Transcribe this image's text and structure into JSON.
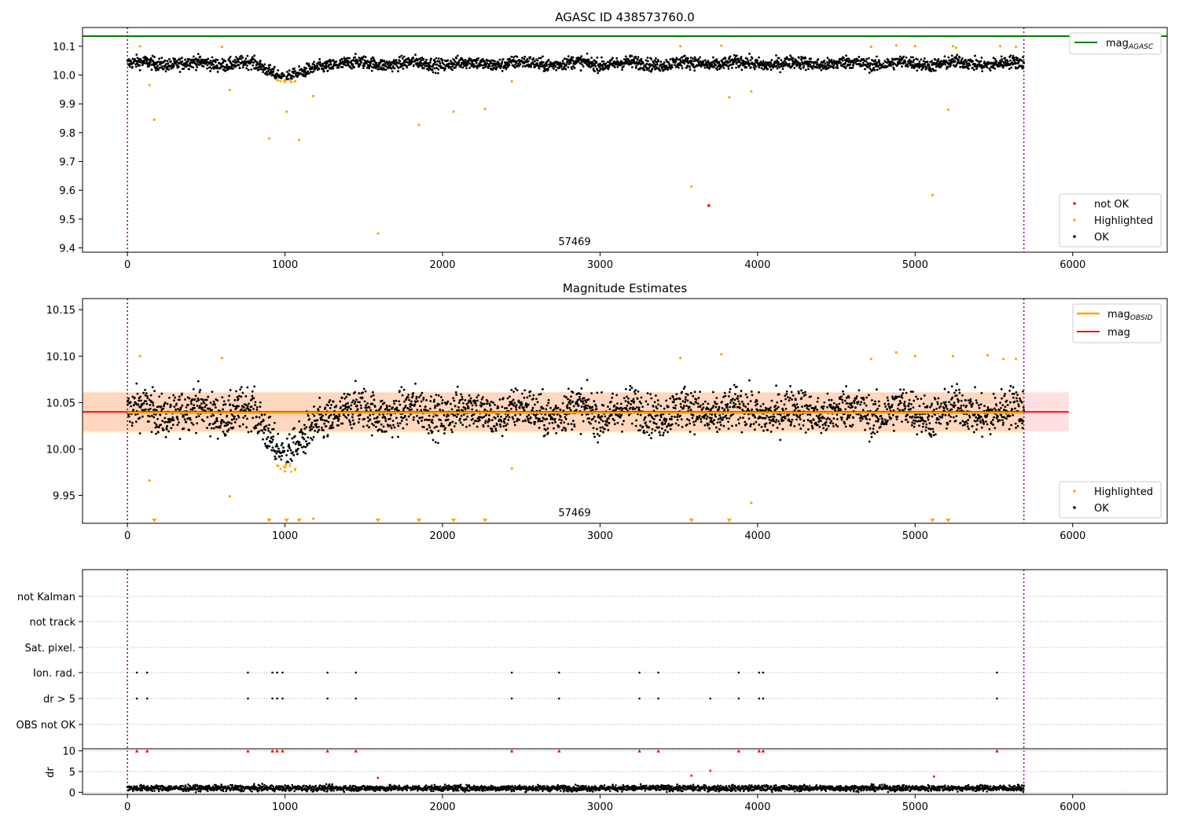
{
  "chart_data": [
    {
      "type": "scatter",
      "title": "AGASC ID 438573760.0",
      "xlim": [
        -285,
        6600
      ],
      "ylim": [
        9.385,
        10.165
      ],
      "x_ticks": [
        "0",
        "1000",
        "2000",
        "3000",
        "4000",
        "5000",
        "6000"
      ],
      "y_ticks": [
        "9.4",
        "9.5",
        "9.6",
        "9.7",
        "9.8",
        "9.9",
        "10.0",
        "10.1"
      ],
      "obsid_label": "57469",
      "obsid_boundaries": [
        0,
        5690
      ],
      "mag_agasc": 10.135,
      "ok_series": {
        "name": "OK",
        "color": "#000000",
        "x_range": [
          0,
          5690
        ],
        "baseline": 10.04,
        "noise": 0.022
      },
      "highlighted_points": [
        [
          80,
          10.1
        ],
        [
          140,
          9.965
        ],
        [
          170,
          9.845
        ],
        [
          600,
          10.098
        ],
        [
          650,
          9.948
        ],
        [
          900,
          9.78
        ],
        [
          1010,
          9.873
        ],
        [
          1090,
          9.775
        ],
        [
          1180,
          9.927
        ],
        [
          1590,
          9.45
        ],
        [
          1850,
          9.827
        ],
        [
          2070,
          9.873
        ],
        [
          2270,
          9.882
        ],
        [
          2440,
          9.978
        ],
        [
          3510,
          10.1
        ],
        [
          3580,
          9.613
        ],
        [
          3770,
          10.102
        ],
        [
          3820,
          9.923
        ],
        [
          3960,
          9.943
        ],
        [
          4720,
          10.098
        ],
        [
          4880,
          10.103
        ],
        [
          5000,
          10.1
        ],
        [
          5110,
          9.583
        ],
        [
          5210,
          9.88
        ],
        [
          5240,
          10.1
        ],
        [
          5260,
          10.095
        ],
        [
          5540,
          10.1
        ],
        [
          5640,
          10.098
        ]
      ],
      "not_ok_points": [
        [
          3690,
          9.547
        ]
      ],
      "legend_top": [
        {
          "label": "mag",
          "sub": "AGASC",
          "color": "#008000"
        }
      ],
      "legend_bottom": [
        {
          "label": "not OK",
          "color": "#ff0000"
        },
        {
          "label": "Highlighted",
          "color": "#ffa500"
        },
        {
          "label": "OK",
          "color": "#000000"
        }
      ]
    },
    {
      "type": "scatter",
      "title": "Magnitude Estimates",
      "xlim": [
        -285,
        6600
      ],
      "ylim": [
        9.92,
        10.162
      ],
      "x_ticks": [
        "0",
        "1000",
        "2000",
        "3000",
        "4000",
        "5000",
        "6000"
      ],
      "y_ticks": [
        "9.95",
        "10.00",
        "10.05",
        "10.10",
        "10.15"
      ],
      "obsid_label": "57469",
      "obsid_boundaries": [
        0,
        5690
      ],
      "mag": 10.04,
      "mag_band": [
        10.019,
        10.061
      ],
      "mag_obsid": 10.039,
      "mag_obsid_band": [
        10.017,
        10.061
      ],
      "highlighted_points": [
        [
          80,
          10.1
        ],
        [
          140,
          9.966
        ],
        [
          600,
          10.098
        ],
        [
          650,
          9.949
        ],
        [
          2440,
          9.979
        ],
        [
          3510,
          10.098
        ],
        [
          3770,
          10.102
        ],
        [
          3960,
          9.942
        ],
        [
          4720,
          10.097
        ],
        [
          4880,
          10.104
        ],
        [
          5000,
          10.1
        ],
        [
          5240,
          10.1
        ],
        [
          5460,
          10.101
        ],
        [
          5560,
          10.097
        ],
        [
          5640,
          10.097
        ],
        [
          1180,
          9.925
        ]
      ],
      "offscale_markers_x": [
        170,
        900,
        1010,
        1090,
        1590,
        1850,
        2070,
        2270,
        3580,
        3820,
        5110,
        5210
      ],
      "legend_top": [
        {
          "label": "mag",
          "sub": "OBSID",
          "color": "#ffa500"
        },
        {
          "label": "mag",
          "sub": "",
          "color": "#ff0000"
        }
      ],
      "legend_bottom": [
        {
          "label": "Highlighted",
          "color": "#ffa500"
        },
        {
          "label": "OK",
          "color": "#000000"
        }
      ]
    },
    {
      "type": "scatter",
      "xlim": [
        -285,
        6600
      ],
      "x_ticks": [
        "0",
        "1000",
        "2000",
        "3000",
        "4000",
        "5000",
        "6000"
      ],
      "flag_rows": [
        "not Kalman",
        "not track",
        "Sat. pixel.",
        "Ion. rad.",
        "dr > 5",
        "OBS not OK"
      ],
      "ion_rad_x": [
        60,
        125,
        765,
        920,
        950,
        985,
        1270,
        1450,
        2440,
        2740,
        3250,
        3370,
        3880,
        4010,
        4035,
        5520
      ],
      "dr_gt5_x": [
        60,
        125,
        765,
        920,
        950,
        985,
        1270,
        1450,
        2440,
        2740,
        3250,
        3370,
        3700,
        3880,
        4010,
        4035,
        5520
      ],
      "dr_ylabel": "dr",
      "dr_ticks": [
        "0",
        "5",
        "10"
      ],
      "dr_ylim": [
        -0.5,
        10.5
      ],
      "dr_clipped_x": [
        60,
        125,
        765,
        920,
        950,
        985,
        1270,
        1450,
        2440,
        2740,
        3250,
        3370,
        3880,
        4010,
        4035,
        5520
      ],
      "dr_red_points": [
        [
          1590,
          3.5
        ],
        [
          3580,
          4.0
        ],
        [
          3700,
          5.2
        ],
        [
          5120,
          3.8
        ]
      ]
    }
  ]
}
